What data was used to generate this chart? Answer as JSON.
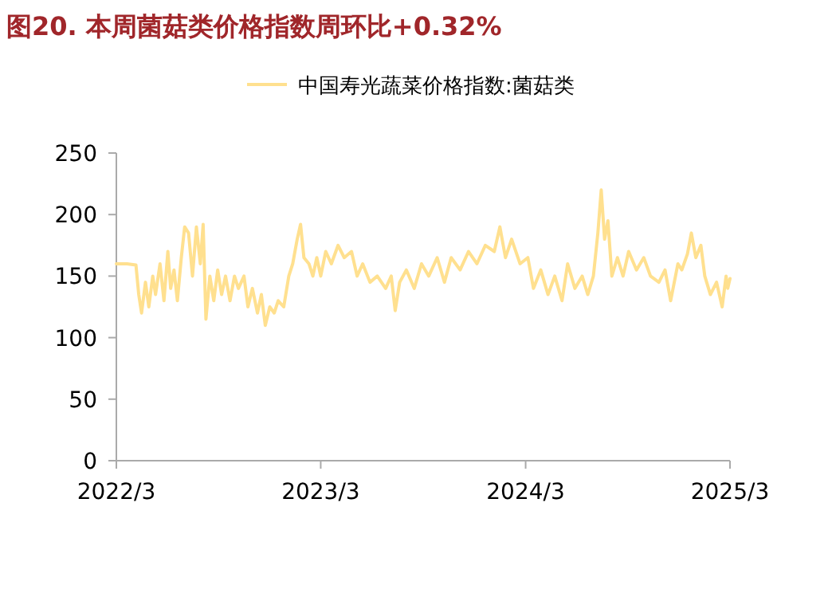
{
  "chart_data": {
    "type": "line",
    "title": "图20. 本周菌菇类价格指数周环比+0.32%",
    "xlim": [
      "2022-03-01",
      "2025-03-01"
    ],
    "xticks": [
      {
        "value": "2022-03-01",
        "label": "2022/3"
      },
      {
        "value": "2023-03-01",
        "label": "2023/3"
      },
      {
        "value": "2024-03-01",
        "label": "2024/3"
      },
      {
        "value": "2025-03-01",
        "label": "2025/3"
      }
    ],
    "ylim": [
      0,
      250
    ],
    "yticks": [
      0,
      50,
      100,
      150,
      200,
      250
    ],
    "grid": false,
    "legend": "top",
    "x": [
      "2022-03-01",
      "2022-03-20",
      "2022-04-05",
      "2022-04-10",
      "2022-04-15",
      "2022-04-22",
      "2022-04-28",
      "2022-05-05",
      "2022-05-10",
      "2022-05-18",
      "2022-05-25",
      "2022-06-01",
      "2022-06-06",
      "2022-06-12",
      "2022-06-18",
      "2022-06-25",
      "2022-07-01",
      "2022-07-08",
      "2022-07-15",
      "2022-07-22",
      "2022-07-29",
      "2022-08-03",
      "2022-08-08",
      "2022-08-15",
      "2022-08-22",
      "2022-08-29",
      "2022-09-05",
      "2022-09-12",
      "2022-09-20",
      "2022-09-28",
      "2022-10-05",
      "2022-10-15",
      "2022-10-22",
      "2022-10-30",
      "2022-11-08",
      "2022-11-15",
      "2022-11-22",
      "2022-11-30",
      "2022-12-08",
      "2022-12-15",
      "2022-12-25",
      "2023-01-03",
      "2023-01-10",
      "2023-01-18",
      "2023-01-24",
      "2023-01-30",
      "2023-02-08",
      "2023-02-15",
      "2023-02-22",
      "2023-03-01",
      "2023-03-10",
      "2023-03-20",
      "2023-04-01",
      "2023-04-12",
      "2023-04-25",
      "2023-05-05",
      "2023-05-15",
      "2023-05-28",
      "2023-06-10",
      "2023-06-25",
      "2023-07-05",
      "2023-07-12",
      "2023-07-20",
      "2023-08-01",
      "2023-08-15",
      "2023-08-28",
      "2023-09-10",
      "2023-09-25",
      "2023-10-08",
      "2023-10-20",
      "2023-11-05",
      "2023-11-20",
      "2023-12-05",
      "2023-12-20",
      "2024-01-05",
      "2024-01-15",
      "2024-01-25",
      "2024-02-05",
      "2024-02-20",
      "2024-03-05",
      "2024-03-15",
      "2024-03-28",
      "2024-04-10",
      "2024-04-22",
      "2024-05-05",
      "2024-05-15",
      "2024-05-28",
      "2024-06-10",
      "2024-06-20",
      "2024-06-30",
      "2024-07-08",
      "2024-07-14",
      "2024-07-20",
      "2024-07-26",
      "2024-08-02",
      "2024-08-12",
      "2024-08-22",
      "2024-09-01",
      "2024-09-15",
      "2024-09-28",
      "2024-10-10",
      "2024-10-25",
      "2024-11-05",
      "2024-11-15",
      "2024-11-28",
      "2024-12-05",
      "2024-12-15",
      "2024-12-22",
      "2024-12-30",
      "2025-01-08",
      "2025-01-15",
      "2025-01-25",
      "2025-02-05",
      "2025-02-15",
      "2025-02-22",
      "2025-02-25",
      "2025-03-01"
    ],
    "series": [
      {
        "name": "中国寿光蔬菜价格指数:菌菇类",
        "color": "#ffe08f",
        "values": [
          160,
          160,
          159,
          135,
          120,
          145,
          125,
          150,
          135,
          160,
          130,
          170,
          140,
          155,
          130,
          165,
          190,
          185,
          150,
          190,
          160,
          192,
          115,
          150,
          130,
          155,
          135,
          150,
          130,
          150,
          140,
          150,
          125,
          140,
          120,
          135,
          110,
          125,
          120,
          130,
          125,
          150,
          160,
          180,
          192,
          165,
          160,
          150,
          165,
          150,
          170,
          160,
          175,
          165,
          170,
          150,
          160,
          145,
          150,
          140,
          150,
          122,
          145,
          155,
          140,
          160,
          150,
          165,
          145,
          165,
          155,
          170,
          160,
          175,
          170,
          190,
          165,
          180,
          160,
          165,
          140,
          155,
          135,
          150,
          130,
          160,
          140,
          150,
          135,
          150,
          185,
          220,
          180,
          195,
          150,
          165,
          150,
          170,
          155,
          165,
          150,
          145,
          155,
          130,
          160,
          155,
          168,
          185,
          165,
          175,
          150,
          135,
          145,
          125,
          150,
          140,
          148
        ]
      }
    ]
  }
}
